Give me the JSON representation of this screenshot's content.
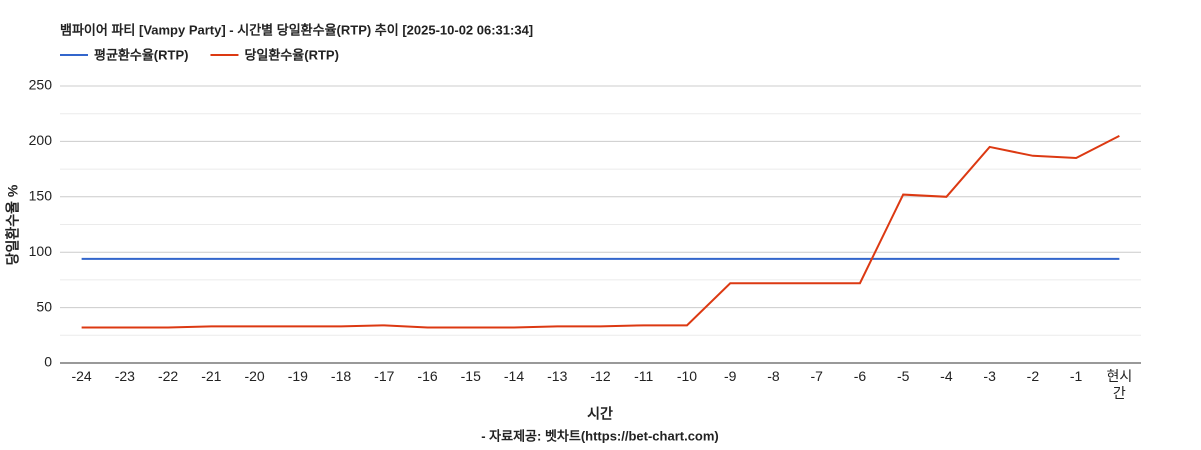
{
  "chart_data": {
    "type": "line",
    "title": "뱀파이어 파티 [Vampy Party] - 시간별 당일환수율(RTP) 추이 [2025-10-02 06:31:34]",
    "x_label": "시간",
    "y_label": "당일환수율 %",
    "source": "- 자료제공: 벳차트(https://bet-chart.com)",
    "categories": [
      "-24",
      "-23",
      "-22",
      "-21",
      "-20",
      "-19",
      "-18",
      "-17",
      "-16",
      "-15",
      "-14",
      "-13",
      "-12",
      "-11",
      "-10",
      "-9",
      "-8",
      "-7",
      "-6",
      "-5",
      "-4",
      "-3",
      "-2",
      "-1",
      "현시간"
    ],
    "series": [
      {
        "name": "평균환수율(RTP)",
        "color": "#3366cc",
        "values": [
          94,
          94,
          94,
          94,
          94,
          94,
          94,
          94,
          94,
          94,
          94,
          94,
          94,
          94,
          94,
          94,
          94,
          94,
          94,
          94,
          94,
          94,
          94,
          94,
          94
        ]
      },
      {
        "name": "당일환수율(RTP)",
        "color": "#dc3912",
        "values": [
          32,
          32,
          32,
          33,
          33,
          33,
          33,
          34,
          32,
          32,
          32,
          33,
          33,
          34,
          34,
          72,
          72,
          72,
          72,
          152,
          150,
          195,
          187,
          185,
          205
        ]
      }
    ],
    "ylim": [
      0,
      250
    ],
    "yticks": [
      0,
      50,
      100,
      150,
      200,
      250
    ],
    "minor_yticks": [
      25,
      75,
      125,
      175,
      225
    ],
    "grid": true,
    "legend": "top"
  }
}
